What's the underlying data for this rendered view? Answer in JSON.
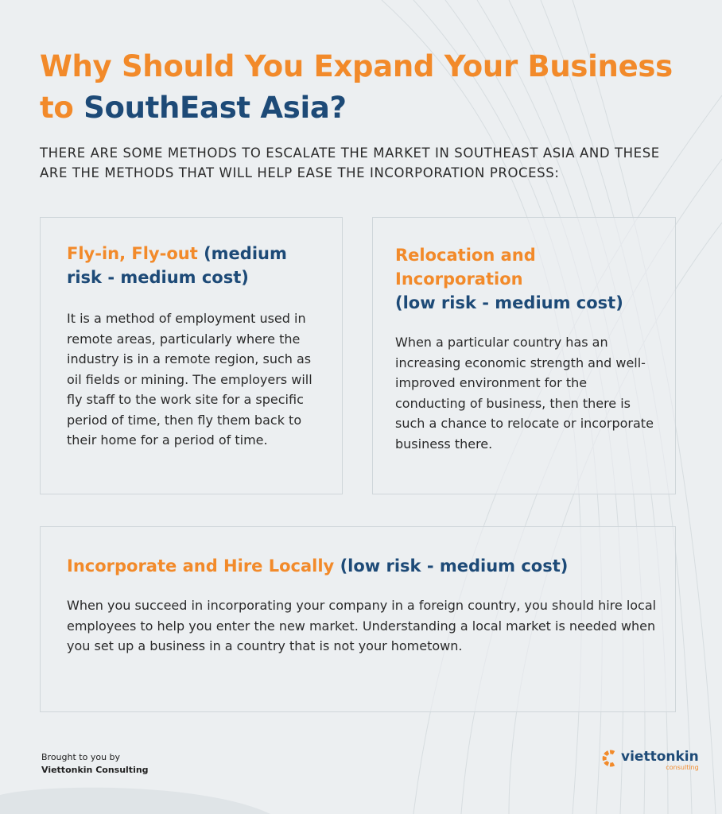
{
  "title": {
    "line1": "Why Should You Expand Your Business",
    "line2_prefix": "to",
    "line2_highlight": "SouthEast Asia?"
  },
  "subtitle": "THERE ARE SOME METHODS TO ESCALATE THE MARKET IN SOUTHEAST ASIA AND THESE ARE THE METHODS THAT WILL HELP EASE THE INCORPORATION PROCESS:",
  "methods": [
    {
      "name": "Fly-in, Fly-out",
      "risk": "(medium risk - medium cost)",
      "description": "It is a method of employment used in remote areas, particularly where the industry is in a remote region, such as oil fields or mining. The employers will fly staff to the work site for a specific period of time, then fly them back to their home for a period of time."
    },
    {
      "name": "Relocation and Incorporation",
      "risk": "(low risk - medium cost)",
      "description": "When a particular country has an increasing economic strength and well-improved environment for the conducting of business, then there is such a chance to relocate or incorporate business there."
    },
    {
      "name": "Incorporate and Hire Locally",
      "risk": "(low risk - medium cost)",
      "description": "When you succeed in incorporating your company in a foreign country, you should hire local employees to help you enter the new market. Understanding a local market is needed when you set up a business in a country that is not your hometown."
    }
  ],
  "footer": {
    "brought_by": "Brought to you by",
    "company": "Viettonkin Consulting"
  },
  "logo": {
    "name": "viettonkin",
    "tagline": "consulting",
    "icon": "c-gear-logo-icon"
  },
  "colors": {
    "orange": "#f28a2a",
    "blue": "#1d4a77",
    "background": "#eceff1"
  }
}
